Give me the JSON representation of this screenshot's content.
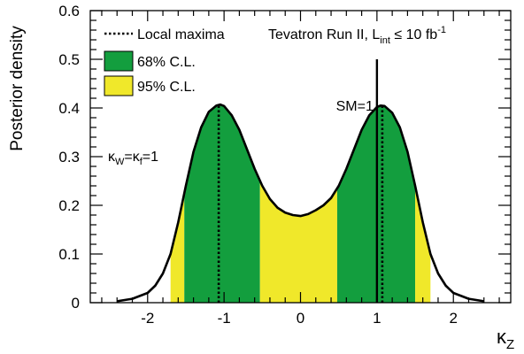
{
  "chart_data": {
    "type": "area",
    "xlabel": "κ",
    "xlabel_sub": "Z",
    "ylabel": "Posterior density",
    "xlim": [
      -2.75,
      2.75
    ],
    "ylim": [
      0,
      0.6
    ],
    "x_ticks": [
      -2,
      -1,
      0,
      1,
      2
    ],
    "x_tick_labels": [
      "-2",
      "-1",
      "0",
      "1",
      "2"
    ],
    "y_ticks": [
      0,
      0.1,
      0.2,
      0.3,
      0.4,
      0.5,
      0.6
    ],
    "y_tick_labels": [
      "0",
      "0.1",
      "0.2",
      "0.3",
      "0.4",
      "0.5",
      "0.6"
    ],
    "curve": {
      "x": [
        -2.4,
        -2.2,
        -2.0,
        -1.9,
        -1.8,
        -1.7,
        -1.6,
        -1.5,
        -1.4,
        -1.3,
        -1.2,
        -1.1,
        -1.05,
        -1.0,
        -0.9,
        -0.8,
        -0.7,
        -0.6,
        -0.5,
        -0.4,
        -0.3,
        -0.2,
        -0.1,
        0.0,
        0.1,
        0.2,
        0.3,
        0.4,
        0.5,
        0.6,
        0.7,
        0.8,
        0.9,
        1.0,
        1.05,
        1.1,
        1.2,
        1.3,
        1.4,
        1.5,
        1.6,
        1.7,
        1.8,
        1.9,
        2.0,
        2.2,
        2.4
      ],
      "y": [
        0.003,
        0.008,
        0.02,
        0.035,
        0.06,
        0.1,
        0.165,
        0.24,
        0.31,
        0.36,
        0.392,
        0.405,
        0.407,
        0.404,
        0.385,
        0.355,
        0.315,
        0.275,
        0.24,
        0.213,
        0.195,
        0.185,
        0.18,
        0.178,
        0.182,
        0.19,
        0.2,
        0.215,
        0.24,
        0.275,
        0.315,
        0.355,
        0.385,
        0.402,
        0.405,
        0.404,
        0.39,
        0.36,
        0.31,
        0.24,
        0.165,
        0.1,
        0.06,
        0.035,
        0.02,
        0.008,
        0.003
      ]
    },
    "bands": [
      {
        "level": "95%",
        "from": -1.7,
        "to": -1.52,
        "color": "#f0e82a"
      },
      {
        "level": "68%",
        "from": -1.52,
        "to": -0.53,
        "color": "#139e3e"
      },
      {
        "level": "95%",
        "from": -0.53,
        "to": 0.48,
        "color": "#f0e82a"
      },
      {
        "level": "68%",
        "from": 0.48,
        "to": 1.5,
        "color": "#139e3e"
      },
      {
        "level": "95%",
        "from": 1.5,
        "to": 1.7,
        "color": "#f0e82a"
      }
    ],
    "local_maxima_x": [
      -1.07,
      1.07
    ],
    "sm_line": {
      "x": 1.0,
      "label": "SM=1",
      "top": 0.5
    },
    "legend": {
      "placement": "top-left",
      "items": [
        {
          "label": "Local maxima",
          "kind": "dotted-line"
        },
        {
          "label": "68% C.L.",
          "kind": "box",
          "color": "#139e3e"
        },
        {
          "label": "95% C.L.",
          "kind": "box",
          "color": "#f0e82a"
        }
      ]
    },
    "annotations": {
      "experiment_main": "Tevatron Run II, L",
      "experiment_sub": "int",
      "experiment_rest": " ≤ 10 fb",
      "experiment_sup": "-1",
      "kappa_left_1": "κ",
      "kappa_left_sub1": "W",
      "kappa_left_mid": "=κ",
      "kappa_left_sub2": "f",
      "kappa_left_end": "=1"
    }
  }
}
